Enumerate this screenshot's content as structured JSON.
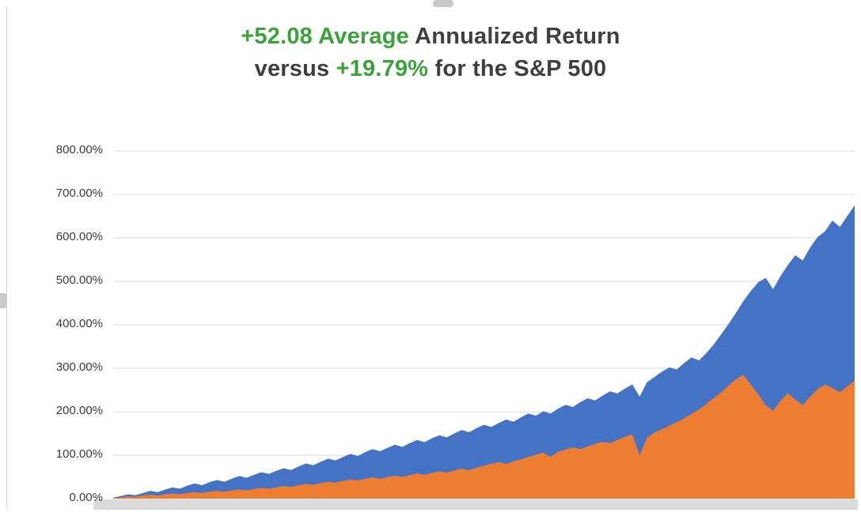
{
  "title": {
    "l1_green": "+52.08 Average",
    "l1_rest": " Annualized Return",
    "l2_pre": "versus ",
    "l2_green": "+19.79%",
    "l2_post": " for the S&P 500"
  },
  "colors": {
    "green": "#3BA13B",
    "dark": "#3F3F3F",
    "grid": "#D9D9D9",
    "axis_strip": "#DBDBDB",
    "blue": "#4472C4",
    "orange": "#ED7D31"
  },
  "chart_data": {
    "type": "area",
    "title": "+52.08 Average Annualized Return versus +19.79% for the S&P 500",
    "xlabel": "",
    "ylabel": "",
    "ylim": [
      0,
      800
    ],
    "ytick_labels": [
      "0.00%",
      "100.00%",
      "200.00%",
      "300.00%",
      "400.00%",
      "500.00%",
      "600.00%",
      "700.00%",
      "800.00%"
    ],
    "grid": true,
    "legend": "none",
    "x_range": [
      0,
      100
    ],
    "series": [
      {
        "name": "series-blue-strategy-area",
        "color": "#4472C4",
        "values": [
          2,
          6,
          10,
          8,
          13,
          18,
          15,
          21,
          26,
          23,
          30,
          35,
          31,
          38,
          43,
          39,
          46,
          52,
          48,
          55,
          61,
          57,
          64,
          70,
          66,
          74,
          81,
          77,
          85,
          92,
          88,
          96,
          103,
          98,
          107,
          114,
          109,
          117,
          124,
          119,
          128,
          135,
          130,
          139,
          146,
          141,
          150,
          158,
          153,
          162,
          170,
          165,
          174,
          182,
          177,
          187,
          196,
          191,
          201,
          196,
          207,
          216,
          211,
          222,
          231,
          226,
          237,
          247,
          242,
          253,
          263,
          235,
          268,
          280,
          292,
          302,
          297,
          312,
          325,
          318,
          335,
          355,
          378,
          402,
          428,
          455,
          478,
          498,
          508,
          482,
          512,
          538,
          560,
          548,
          578,
          602,
          615,
          640,
          625,
          650,
          675
        ]
      },
      {
        "name": "series-orange-sp500-area",
        "color": "#ED7D31",
        "values": [
          1,
          3,
          5,
          4,
          7,
          9,
          7,
          10,
          12,
          10,
          13,
          15,
          13,
          16,
          18,
          16,
          19,
          21,
          19,
          22,
          25,
          23,
          26,
          29,
          27,
          31,
          34,
          32,
          36,
          39,
          37,
          41,
          44,
          42,
          46,
          49,
          46,
          50,
          53,
          50,
          54,
          58,
          55,
          59,
          63,
          60,
          65,
          69,
          66,
          71,
          76,
          80,
          84,
          80,
          86,
          91,
          96,
          101,
          106,
          96,
          108,
          113,
          118,
          114,
          120,
          126,
          131,
          128,
          135,
          142,
          148,
          100,
          140,
          152,
          160,
          168,
          176,
          185,
          195,
          205,
          218,
          232,
          245,
          260,
          275,
          285,
          262,
          240,
          215,
          202,
          225,
          243,
          228,
          215,
          235,
          252,
          262,
          255,
          245,
          258,
          272
        ]
      }
    ]
  }
}
